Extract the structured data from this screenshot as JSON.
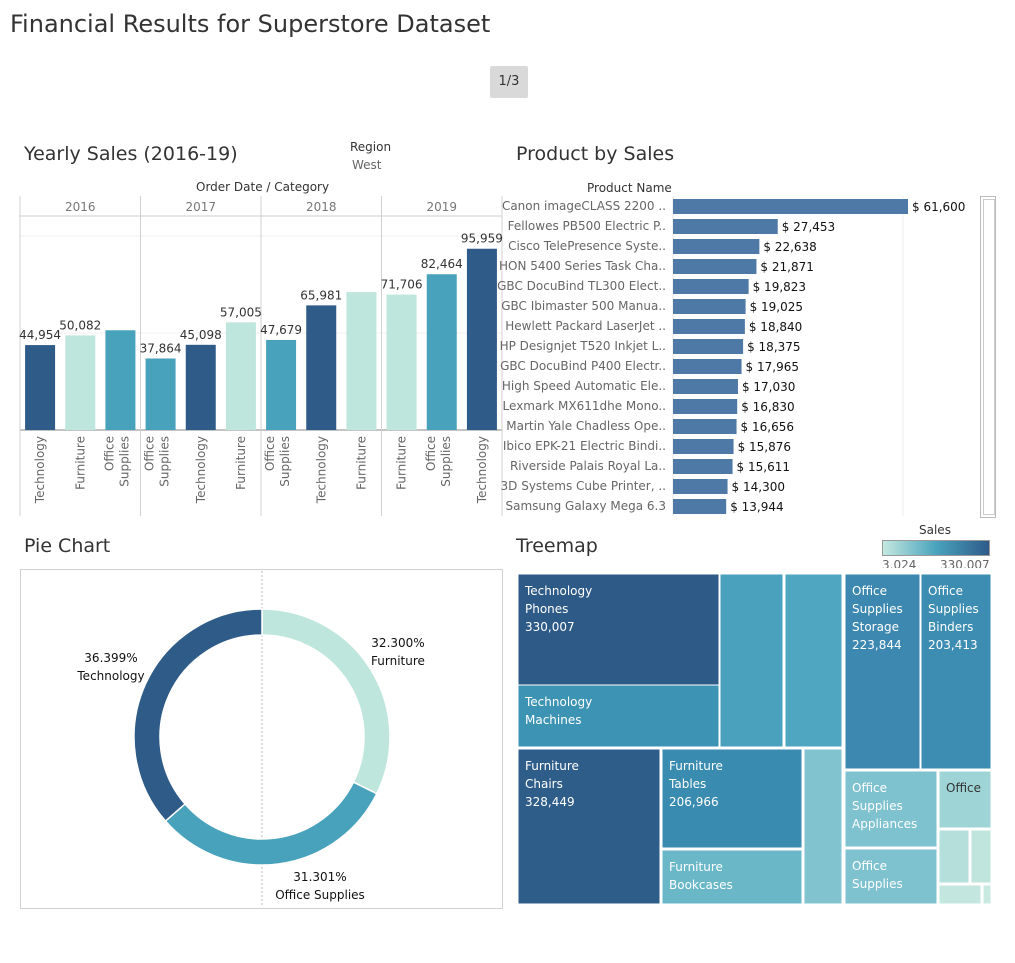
{
  "header": {
    "title": "Financial Results for Superstore Dataset",
    "pager": "1/3"
  },
  "colors": {
    "technology": "#2e5b87",
    "furniture": "#bfe6dc",
    "office": "#48a2bb",
    "bar_product": "#4e79a7"
  },
  "yearly": {
    "title": "Yearly Sales (2016-19)",
    "filter_label": "Region",
    "filter_value": "West",
    "header_label": "Order Date  /  Category"
  },
  "product": {
    "title": "Product by Sales",
    "column_header": "Product Name"
  },
  "pie": {
    "title": "Pie Chart"
  },
  "treemap": {
    "title": "Treemap",
    "legend_title": "Sales",
    "legend_min": "3,024",
    "legend_max": "330,007"
  },
  "chart_data": [
    {
      "type": "bar",
      "title": "Yearly Sales (2016-19)",
      "xlabel": "Order Date  /  Category",
      "groups": [
        {
          "year": "2016",
          "bars": [
            {
              "category": "Technology",
              "value": 44954,
              "label": "44,954"
            },
            {
              "category": "Furniture",
              "value": 50082,
              "label": "50,082"
            },
            {
              "category": "Office Supplies",
              "value": 52800,
              "label": ""
            }
          ]
        },
        {
          "year": "2017",
          "bars": [
            {
              "category": "Office Supplies",
              "value": 37864,
              "label": "37,864"
            },
            {
              "category": "Technology",
              "value": 45098,
              "label": "45,098"
            },
            {
              "category": "Furniture",
              "value": 57005,
              "label": "57,005"
            }
          ]
        },
        {
          "year": "2018",
          "bars": [
            {
              "category": "Office Supplies",
              "value": 47679,
              "label": "47,679"
            },
            {
              "category": "Technology",
              "value": 65981,
              "label": "65,981"
            },
            {
              "category": "Furniture",
              "value": 73000,
              "label": ""
            }
          ]
        },
        {
          "year": "2019",
          "bars": [
            {
              "category": "Furniture",
              "value": 71706,
              "label": "71,706"
            },
            {
              "category": "Office Supplies",
              "value": 82464,
              "label": "82,464"
            },
            {
              "category": "Technology",
              "value": 95959,
              "label": "95,959"
            }
          ]
        }
      ],
      "ylim": [
        0,
        108000
      ],
      "grid": true
    },
    {
      "type": "bar",
      "orientation": "horizontal",
      "title": "Product by Sales",
      "ylabel": "Product Name",
      "categories": [
        "Canon imageCLASS 2200 ..",
        "Fellowes PB500 Electric P..",
        "Cisco TelePresence Syste..",
        "HON 5400 Series Task Cha..",
        "GBC DocuBind TL300 Elect..",
        "GBC Ibimaster 500 Manua..",
        "Hewlett Packard LaserJet ..",
        "HP Designjet T520 Inkjet L..",
        "GBC DocuBind P400 Electr..",
        "High Speed Automatic Ele..",
        "Lexmark MX611dhe Mono..",
        "Martin Yale Chadless Ope..",
        "Ibico EPK-21 Electric Bindi..",
        "Riverside Palais Royal La..",
        "3D Systems Cube Printer, ..",
        "Samsung Galaxy Mega 6.3"
      ],
      "values": [
        61600,
        27453,
        22638,
        21871,
        19823,
        19025,
        18840,
        18375,
        17965,
        17030,
        16830,
        16656,
        15876,
        15611,
        14300,
        13944
      ],
      "labels": [
        "$ 61,600",
        "$ 27,453",
        "$ 22,638",
        "$ 21,871",
        "$ 19,823",
        "$ 19,025",
        "$ 18,840",
        "$ 18,375",
        "$ 17,965",
        "$ 17,030",
        "$ 16,830",
        "$ 16,656",
        "$ 15,876",
        "$ 15,611",
        "$ 14,300",
        "$ 13,944"
      ],
      "xlim": [
        0,
        66000
      ]
    },
    {
      "type": "pie",
      "title": "Pie Chart",
      "donut": true,
      "slices": [
        {
          "name": "Furniture",
          "value": 32.3,
          "label": "32.300%",
          "color": "#bfe6dc"
        },
        {
          "name": "Office Supplies",
          "value": 31.301,
          "label": "31.301%",
          "color": "#48a2bb"
        },
        {
          "name": "Technology",
          "value": 36.399,
          "label": "36.399%",
          "color": "#2e5b87"
        }
      ]
    },
    {
      "type": "treemap",
      "title": "Treemap",
      "color_legend": {
        "title": "Sales",
        "min": 3024,
        "max": 330007
      },
      "cells": [
        {
          "lines": [
            "Technology",
            "Phones",
            "330,007"
          ],
          "value": 330007
        },
        {
          "lines": [
            "Technology",
            "Machines"
          ]
        },
        {
          "lines": [
            "Furniture",
            "Chairs",
            "328,449"
          ],
          "value": 328449
        },
        {
          "lines": [
            "Furniture",
            "Tables",
            "206,966"
          ],
          "value": 206966
        },
        {
          "lines": [
            "Furniture",
            "Bookcases"
          ]
        },
        {
          "lines": [
            "Office",
            "Supplies",
            "Storage",
            "223,844"
          ],
          "value": 223844
        },
        {
          "lines": [
            "Office",
            "Supplies",
            "Binders",
            "203,413"
          ],
          "value": 203413
        },
        {
          "lines": [
            "Office",
            "Supplies",
            "Appliances"
          ]
        },
        {
          "lines": [
            "Office"
          ]
        },
        {
          "lines": [
            "Office",
            "Supplies"
          ]
        }
      ]
    }
  ]
}
